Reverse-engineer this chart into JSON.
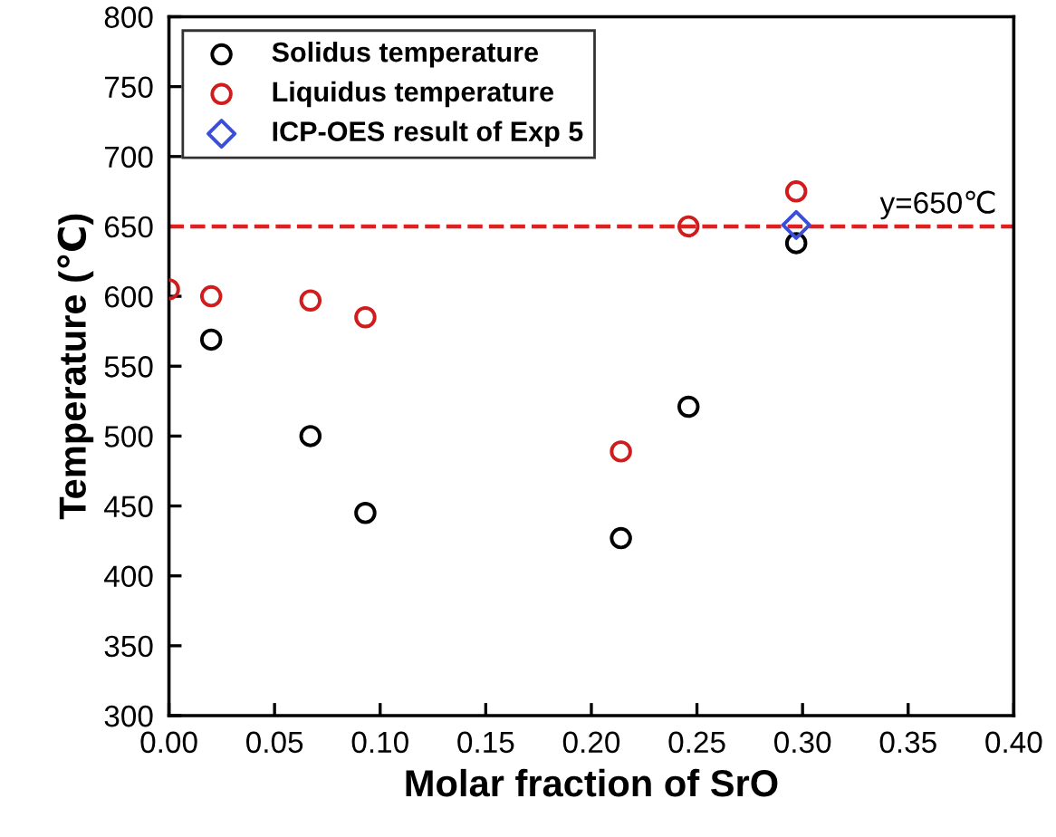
{
  "chart_data": {
    "type": "scatter",
    "xlabel": "Molar fraction of SrO",
    "ylabel": "Temperature (℃)",
    "xlim": [
      0,
      0.4
    ],
    "xticks": [
      {
        "value": 0,
        "label": "0.00"
      },
      {
        "value": 0.05,
        "label": "0.05"
      },
      {
        "value": 0.1,
        "label": "0.10"
      },
      {
        "value": 0.15,
        "label": "0.15"
      },
      {
        "value": 0.2,
        "label": "0.20"
      },
      {
        "value": 0.25,
        "label": "0.25"
      },
      {
        "value": 0.3,
        "label": "0.30"
      },
      {
        "value": 0.35,
        "label": "0.35"
      },
      {
        "value": 0.4,
        "label": "0.40"
      }
    ],
    "ylim": [
      300,
      800
    ],
    "yticks": [
      300,
      350,
      400,
      450,
      500,
      550,
      600,
      650,
      700,
      750,
      800
    ],
    "series": [
      {
        "name": "Solidus temperature",
        "color": "#000000",
        "marker": "circle",
        "x": [
          0.02,
          0.067,
          0.093,
          0.214,
          0.246,
          0.297
        ],
        "values": [
          569,
          500,
          445,
          427,
          521,
          638
        ]
      },
      {
        "name": "Liquidus temperature",
        "color": "#d01c1c",
        "marker": "circle",
        "x": [
          0.0,
          0.02,
          0.067,
          0.093,
          0.214,
          0.246,
          0.297
        ],
        "values": [
          605,
          600,
          597,
          585,
          489,
          650,
          675
        ]
      },
      {
        "name": "ICP-OES result of Exp 5",
        "color": "#3a4fd8",
        "marker": "diamond",
        "x": [
          0.297
        ],
        "values": [
          651
        ]
      }
    ],
    "ref_lines": [
      {
        "axis": "y",
        "value": 650,
        "label": "y=650℃",
        "color": "#e02020",
        "line_style": "dashed"
      }
    ],
    "legend": "top left",
    "grid": false
  }
}
